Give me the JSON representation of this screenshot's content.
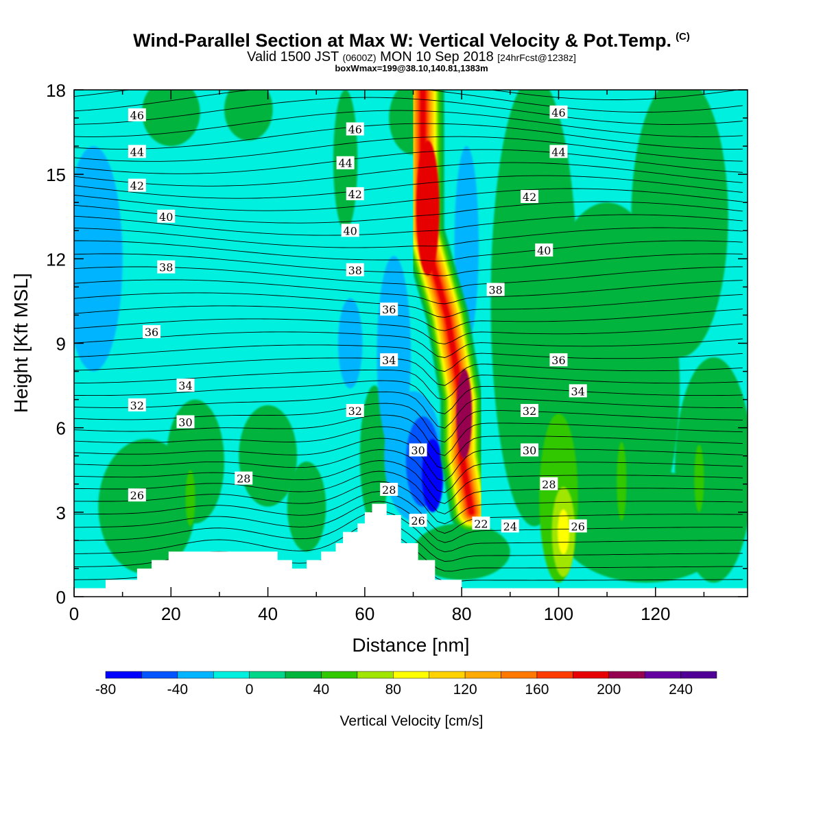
{
  "header": {
    "title": "Wind-Parallel Section at Max W: Vertical Velocity & Pot.Temp.",
    "title_mark": "(C)",
    "valid_prefix": "Valid 1500 JST",
    "valid_utc": "(0600Z)",
    "valid_date": "MON 10 Sep 2018",
    "fcst_info": "[24hrFcst@1238z]",
    "box_info": "boxWmax=199@38.10,140.81,1383m"
  },
  "chart_data": {
    "type": "heatmap",
    "xlabel": "Distance [nm]",
    "ylabel": "Height [Kft MSL]",
    "xlim": [
      0,
      139
    ],
    "ylim": [
      0,
      18
    ],
    "x_ticks": [
      "0",
      "20",
      "40",
      "60",
      "80",
      "100",
      "120"
    ],
    "y_ticks": [
      "0",
      "3",
      "6",
      "9",
      "12",
      "15",
      "18"
    ],
    "colorbar": {
      "title": "Vertical Velocity [cm/s]",
      "range": [
        -80,
        260
      ],
      "tick_labels": [
        "-80",
        "-40",
        "0",
        "40",
        "80",
        "120",
        "160",
        "200",
        "240"
      ],
      "levels": [
        -80,
        -60,
        -40,
        -20,
        0,
        20,
        40,
        60,
        80,
        100,
        120,
        140,
        160,
        180,
        200,
        220,
        240,
        260
      ],
      "colors": [
        "#0000ff",
        "#0055ff",
        "#00b4ff",
        "#00f0e0",
        "#00d68a",
        "#00b43c",
        "#32c800",
        "#a0e600",
        "#ffff00",
        "#ffd200",
        "#ffaa00",
        "#ff7800",
        "#ff3c00",
        "#e60000",
        "#960050",
        "#6400a0",
        "#500096"
      ]
    },
    "background_level_color": "#00f0e0",
    "updraft_core": {
      "axis": [
        [
          72,
          18
        ],
        [
          72,
          13
        ],
        [
          77,
          10
        ],
        [
          80,
          7
        ],
        [
          80,
          5
        ],
        [
          82,
          3
        ]
      ],
      "max_value": 199
    },
    "terrain_kft": [
      [
        0,
        0.3
      ],
      [
        6.5,
        0.3
      ],
      [
        6.5,
        0.6
      ],
      [
        13,
        0.6
      ],
      [
        13,
        1.0
      ],
      [
        16,
        1.0
      ],
      [
        16,
        1.3
      ],
      [
        19.5,
        1.3
      ],
      [
        19.5,
        1.6
      ],
      [
        42,
        1.6
      ],
      [
        42,
        1.3
      ],
      [
        45,
        1.3
      ],
      [
        45,
        1.0
      ],
      [
        48,
        1.0
      ],
      [
        48,
        1.3
      ],
      [
        51,
        1.3
      ],
      [
        51,
        1.6
      ],
      [
        54,
        1.6
      ],
      [
        54,
        1.9
      ],
      [
        55.5,
        1.9
      ],
      [
        55.5,
        2.3
      ],
      [
        58.5,
        2.3
      ],
      [
        58.5,
        2.6
      ],
      [
        60,
        2.6
      ],
      [
        60,
        3.0
      ],
      [
        61.5,
        3.0
      ],
      [
        61.5,
        3.3
      ],
      [
        64.5,
        3.3
      ],
      [
        64.5,
        2.9
      ],
      [
        67.5,
        2.9
      ],
      [
        67.5,
        1.9
      ],
      [
        71,
        1.9
      ],
      [
        71,
        1.3
      ],
      [
        74.5,
        1.3
      ],
      [
        74.5,
        0.6
      ],
      [
        80,
        0.6
      ],
      [
        80,
        0.3
      ],
      [
        139,
        0.3
      ]
    ],
    "isentropes_K": [
      {
        "label": "46",
        "x": 13,
        "y": 17.1
      },
      {
        "label": "44",
        "x": 13,
        "y": 15.8
      },
      {
        "label": "42",
        "x": 13,
        "y": 14.6
      },
      {
        "label": "40",
        "x": 19,
        "y": 13.5
      },
      {
        "label": "38",
        "x": 19,
        "y": 11.7
      },
      {
        "label": "36",
        "x": 16,
        "y": 9.4
      },
      {
        "label": "34",
        "x": 23,
        "y": 7.5
      },
      {
        "label": "32",
        "x": 13,
        "y": 6.8
      },
      {
        "label": "30",
        "x": 23,
        "y": 6.2
      },
      {
        "label": "28",
        "x": 35,
        "y": 4.2
      },
      {
        "label": "26",
        "x": 13,
        "y": 3.6
      },
      {
        "label": "46",
        "x": 58,
        "y": 16.6
      },
      {
        "label": "44",
        "x": 56,
        "y": 15.4
      },
      {
        "label": "42",
        "x": 58,
        "y": 14.3
      },
      {
        "label": "40",
        "x": 57,
        "y": 13.0
      },
      {
        "label": "38",
        "x": 58,
        "y": 11.6
      },
      {
        "label": "36",
        "x": 65,
        "y": 10.2
      },
      {
        "label": "34",
        "x": 65,
        "y": 8.4
      },
      {
        "label": "32",
        "x": 58,
        "y": 6.6
      },
      {
        "label": "30",
        "x": 71,
        "y": 5.2
      },
      {
        "label": "28",
        "x": 65,
        "y": 3.8
      },
      {
        "label": "26",
        "x": 71,
        "y": 2.7
      },
      {
        "label": "22",
        "x": 84,
        "y": 2.6
      },
      {
        "label": "24",
        "x": 90,
        "y": 2.5
      },
      {
        "label": "26",
        "x": 104,
        "y": 2.5
      },
      {
        "label": "46",
        "x": 100,
        "y": 17.2
      },
      {
        "label": "44",
        "x": 100,
        "y": 15.8
      },
      {
        "label": "42",
        "x": 94,
        "y": 14.2
      },
      {
        "label": "40",
        "x": 97,
        "y": 12.3
      },
      {
        "label": "38",
        "x": 87,
        "y": 10.9
      },
      {
        "label": "36",
        "x": 100,
        "y": 8.4
      },
      {
        "label": "34",
        "x": 104,
        "y": 7.3
      },
      {
        "label": "32",
        "x": 94,
        "y": 6.6
      },
      {
        "label": "30",
        "x": 94,
        "y": 5.2
      },
      {
        "label": "28",
        "x": 98,
        "y": 4.0
      }
    ]
  }
}
